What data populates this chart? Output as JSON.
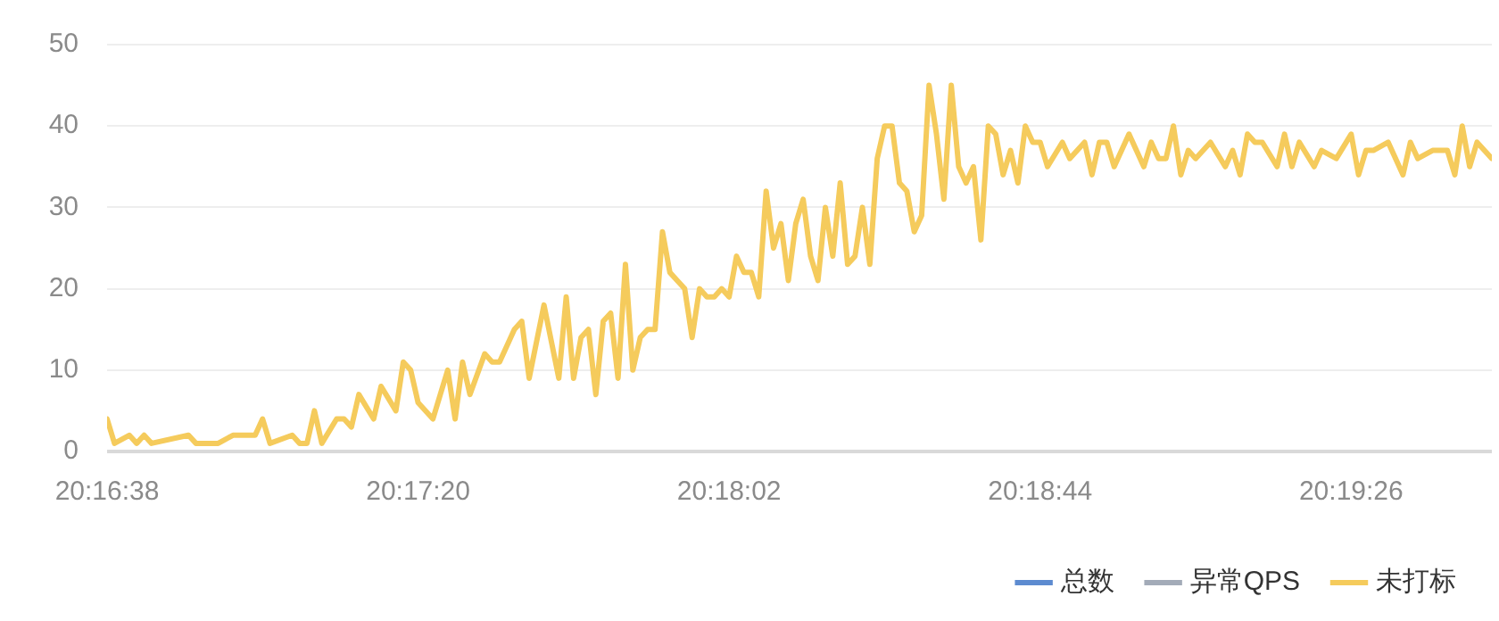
{
  "chart_data": {
    "type": "line",
    "grid": "y",
    "legend": "bottom right",
    "marker": "none",
    "line_style": "solid",
    "xlim": [
      20.2772222,
      20.3291667
    ],
    "xticks": [
      {
        "value": 20.2772222,
        "label": "20:16:38"
      },
      {
        "value": 20.2888889,
        "label": "20:17:20"
      },
      {
        "value": 20.3005556,
        "label": "20:18:02"
      },
      {
        "value": 20.3122222,
        "label": "20:18:44"
      },
      {
        "value": 20.3238889,
        "label": "20:19:26"
      }
    ],
    "ylim": [
      0,
      50
    ],
    "yticks": [
      0,
      10,
      20,
      30,
      40,
      50
    ],
    "series": [
      {
        "name": "总数",
        "color": "#5d8bd0"
      },
      {
        "name": "异常QPS",
        "color": "#a3abb8"
      },
      {
        "name": "未打标",
        "color": "#f5cb5c",
        "x": [
          20.2772222,
          20.2775,
          20.2780556,
          20.2783333,
          20.2786111,
          20.2788889,
          20.2802778,
          20.2805556,
          20.2813889,
          20.2819444,
          20.2827778,
          20.2830556,
          20.2833333,
          20.2841667,
          20.2844444,
          20.2847222,
          20.285,
          20.2852778,
          20.2858333,
          20.2861111,
          20.2863889,
          20.2866667,
          20.2872222,
          20.2875,
          20.2880556,
          20.2883333,
          20.2886111,
          20.2888889,
          20.2894444,
          20.2897222,
          20.29,
          20.2902778,
          20.2905556,
          20.2908333,
          20.2913889,
          20.2916667,
          20.2919444,
          20.2925,
          20.2927778,
          20.2930556,
          20.2936111,
          20.2941667,
          20.2944444,
          20.2947222,
          20.295,
          20.2952778,
          20.2955556,
          20.2958333,
          20.2961111,
          20.2963889,
          20.2966667,
          20.2969444,
          20.2972222,
          20.2975,
          20.2977778,
          20.2980556,
          20.2983333,
          20.2988889,
          20.2991667,
          20.2994444,
          20.2997222,
          20.3,
          20.3002778,
          20.3005556,
          20.3008333,
          20.3011111,
          20.3013889,
          20.3016667,
          20.3019444,
          20.3022222,
          20.3025,
          20.3027778,
          20.3030556,
          20.3033333,
          20.3036111,
          20.3038889,
          20.3041667,
          20.3044444,
          20.3047222,
          20.305,
          20.3052778,
          20.3055556,
          20.3058333,
          20.3061111,
          20.3063889,
          20.3066667,
          20.3069444,
          20.3072222,
          20.3075,
          20.3077778,
          20.3080556,
          20.3083333,
          20.3086111,
          20.3088889,
          20.3091667,
          20.3094444,
          20.3097222,
          20.31,
          20.3102778,
          20.3105556,
          20.3108333,
          20.3111111,
          20.3113889,
          20.3116667,
          20.3119444,
          20.3122222,
          20.3125,
          20.3130556,
          20.3133333,
          20.3138889,
          20.3141667,
          20.3144444,
          20.3147222,
          20.315,
          20.3155556,
          20.3161111,
          20.3163889,
          20.3166667,
          20.3169444,
          20.3172222,
          20.3175,
          20.3177778,
          20.3180556,
          20.3186111,
          20.3191667,
          20.3194444,
          20.3197222,
          20.32,
          20.3202778,
          20.3205556,
          20.3211111,
          20.3213889,
          20.3216667,
          20.3219444,
          20.3225,
          20.3227778,
          20.3233333,
          20.3238889,
          20.3241667,
          20.3244444,
          20.3247222,
          20.3252778,
          20.3258333,
          20.3261111,
          20.3263889,
          20.3269444,
          20.3275,
          20.3277778,
          20.3280556,
          20.3283333,
          20.3286111,
          20.3291667
        ],
        "values": [
          4,
          1,
          2,
          1,
          2,
          1,
          2,
          1,
          1,
          2,
          2,
          4,
          1,
          2,
          1,
          1,
          5,
          1,
          4,
          4,
          3,
          7,
          4,
          8,
          5,
          11,
          10,
          6,
          4,
          7,
          10,
          4,
          11,
          7,
          12,
          11,
          11,
          15,
          16,
          9,
          18,
          9,
          19,
          9,
          14,
          15,
          7,
          16,
          17,
          9,
          23,
          10,
          14,
          15,
          15,
          27,
          22,
          20,
          14,
          20,
          19,
          19,
          20,
          19,
          24,
          22,
          22,
          19,
          32,
          25,
          28,
          21,
          28,
          31,
          24,
          21,
          30,
          24,
          33,
          23,
          24,
          30,
          23,
          36,
          40,
          40,
          33,
          32,
          27,
          29,
          45,
          39,
          31,
          45,
          35,
          33,
          35,
          26,
          40,
          39,
          34,
          37,
          33,
          40,
          38,
          38,
          35,
          38,
          36,
          38,
          34,
          38,
          38,
          35,
          39,
          35,
          38,
          36,
          36,
          40,
          34,
          37,
          36,
          38,
          35,
          37,
          34,
          39,
          38,
          38,
          35,
          39,
          35,
          38,
          35,
          37,
          36,
          39,
          34,
          37,
          37,
          38,
          34,
          38,
          36,
          37,
          37,
          34,
          40,
          35,
          38,
          36
        ]
      }
    ]
  }
}
